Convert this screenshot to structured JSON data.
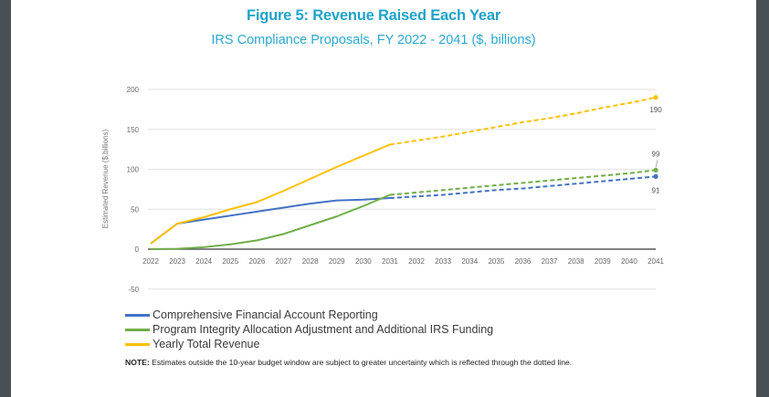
{
  "chart_data": {
    "type": "line",
    "title": "Figure 5: Revenue Raised Each Year",
    "subtitle": "IRS Compliance Proposals, FY 2022 - 2041 ($, billions)",
    "xlabel": "",
    "ylabel": "Estimated Revenue ($,billions)",
    "ylim": [
      -50,
      200
    ],
    "yticks": [
      "200",
      "150",
      "100",
      "50",
      "0",
      "-50"
    ],
    "ytick_values": [
      200,
      150,
      100,
      50,
      0,
      -50
    ],
    "grid": true,
    "legend_position": "bottom-left",
    "x": [
      "2022",
      "2023",
      "2024",
      "2025",
      "2026",
      "2027",
      "2028",
      "2029",
      "2030",
      "2031",
      "2032",
      "2033",
      "2034",
      "2035",
      "2036",
      "2037",
      "2038",
      "2039",
      "2040",
      "2041"
    ],
    "projection_start_index": 9,
    "series": [
      {
        "name": "Comprehensive Financial Account Reporting",
        "color": "#4472c4",
        "values": [
          7,
          32,
          37,
          42,
          47,
          52,
          57,
          61,
          62,
          64,
          66,
          68,
          71,
          74,
          76,
          79,
          82,
          85,
          88,
          91
        ],
        "end_label": "91"
      },
      {
        "name": "Program Integrity Allocation Adjustment and Additional IRS Funding",
        "color": "#70ad47",
        "values": [
          0,
          0.5,
          2.5,
          6,
          11,
          19,
          30,
          41,
          54,
          68,
          71,
          74,
          77,
          80,
          83,
          86,
          89,
          92,
          95,
          99
        ],
        "end_label": "99"
      },
      {
        "name": "Yearly Total Revenue",
        "color": "#ffc000",
        "values": [
          7,
          32,
          40,
          50,
          59,
          73,
          88,
          103,
          117,
          131,
          136,
          141,
          147,
          153,
          159,
          164,
          170,
          177,
          183,
          190
        ],
        "end_label": "190"
      }
    ]
  },
  "note": {
    "prefix": "NOTE:",
    "text": " Estimates outside the 10-year budget window are subject to greater uncertainty which is reflected through the dotted line."
  }
}
